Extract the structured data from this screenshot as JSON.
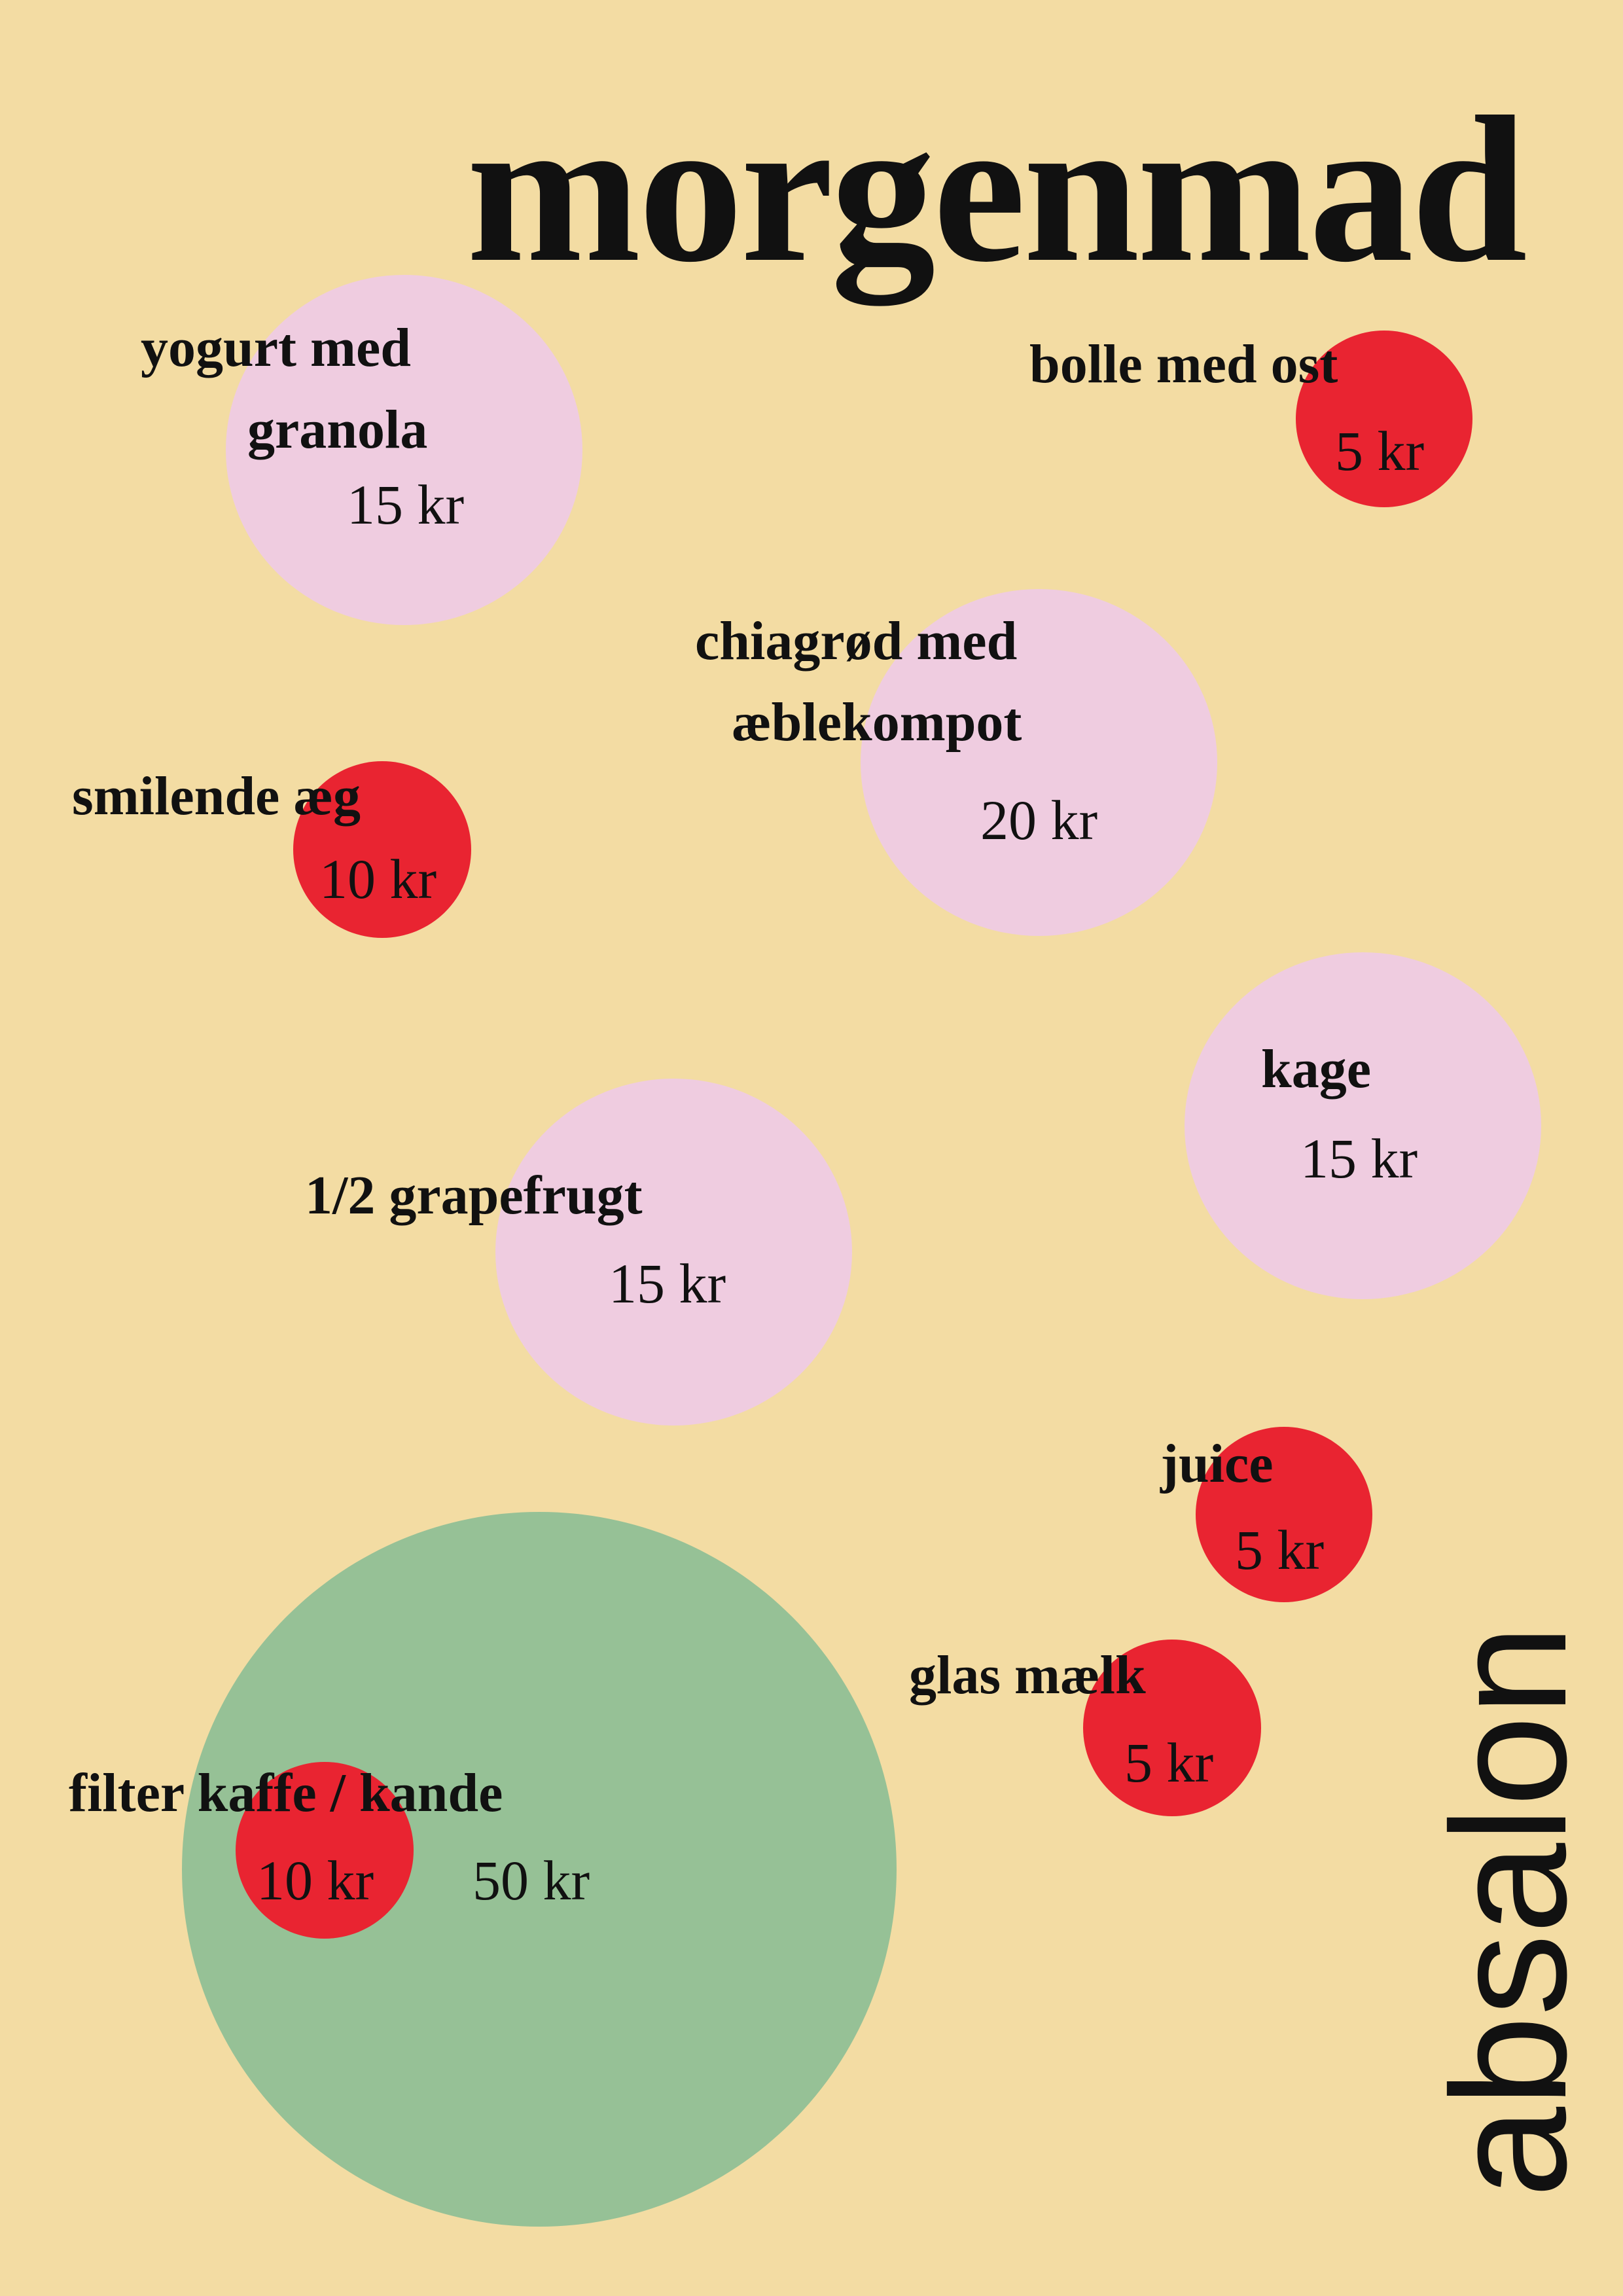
{
  "title": "morgenmad",
  "brand": "absalon",
  "colors": {
    "background": "#f3dca3",
    "pink_circle": "#efcce0",
    "red_circle": "#e92431",
    "green_circle": "#96c196",
    "text": "#111111"
  },
  "menu": {
    "yogurt": {
      "name_line1": "yogurt med",
      "name_line2": "granola",
      "price": "15 kr"
    },
    "bolle": {
      "name": "bolle med ost",
      "price": "5 kr"
    },
    "chia": {
      "name_line1": "chiagrød med",
      "name_line2": "æblekompot",
      "price": "20 kr"
    },
    "aeg": {
      "name": "smilende æg",
      "price": "10 kr"
    },
    "kage": {
      "name": "kage",
      "price": "15 kr"
    },
    "grapefrugt": {
      "name": "1/2 grapefrugt",
      "price": "15 kr"
    },
    "juice": {
      "name": "juice",
      "price": "5 kr"
    },
    "maelk": {
      "name": "glas mælk",
      "price": "5 kr"
    },
    "kaffe": {
      "name": "filter kaffe / kande",
      "price_cup": "10 kr",
      "price_pot": "50 kr"
    }
  }
}
